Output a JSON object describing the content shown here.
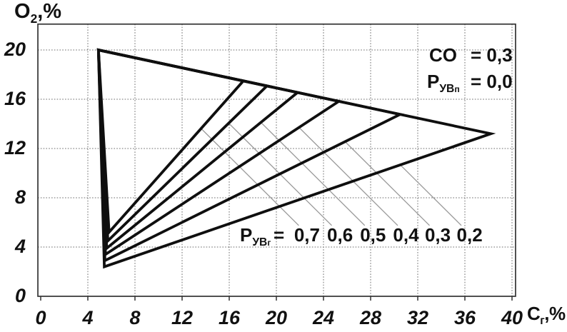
{
  "page": {
    "background": "#ffffff"
  },
  "axes": {
    "y_title": {
      "main": "O",
      "sub": "2",
      "suffix": ",%"
    },
    "x_title": {
      "main": "C",
      "sub": "г",
      "suffix": ",%"
    },
    "x_ticks": [
      "0",
      "4",
      "8",
      "12",
      "16",
      "20",
      "24",
      "28",
      "32",
      "36",
      "40"
    ],
    "y_ticks": [
      "0",
      "4",
      "8",
      "12",
      "16",
      "20"
    ]
  },
  "annotation": {
    "rows": [
      {
        "name_main": "CO",
        "name_sub": "",
        "name_subsub": "",
        "eq": "=",
        "value": "0,3"
      },
      {
        "name_main": "Р",
        "name_sub": "УВ",
        "name_subsub": "п",
        "eq": "=",
        "value": "0,0"
      }
    ]
  },
  "family_label": {
    "name_main": "Р",
    "name_sub": "УВ",
    "name_subsub": "г",
    "eq": "=",
    "values": [
      "0,7",
      "0,6",
      "0,5",
      "0,4",
      "0,3",
      "0,2"
    ]
  },
  "chart_data": {
    "type": "line",
    "title": "",
    "xlabel": "Сг,%",
    "ylabel": "О2,%",
    "xlim": [
      0,
      40.3
    ],
    "ylim": [
      0,
      22.1
    ],
    "x_ticks": [
      0,
      4,
      8,
      12,
      16,
      20,
      24,
      28,
      32,
      36,
      40
    ],
    "y_ticks": [
      0,
      4,
      8,
      12,
      16,
      20
    ],
    "grid": true,
    "legend_position": "none",
    "line_color": "#0f0f0f",
    "leader_color": "#9a9a9a",
    "grid_color": "#6b6b6b",
    "frame_color": "#333333",
    "annotation_lines": [
      "CO = 0,3",
      "РУВп = 0,0"
    ],
    "family_label": "РУВг = 0,7 0,6 0,5 0,4 0,3 0,2",
    "series": [
      {
        "name": "РУВг = 0,7",
        "apex": [
          4.9,
          20.0
        ],
        "tip": [
          17.2,
          17.49
        ],
        "bottom": [
          5.8,
          5.2
        ]
      },
      {
        "name": "РУВг = 0,6",
        "apex": [
          4.9,
          20.0
        ],
        "tip": [
          19.2,
          17.08
        ],
        "bottom": [
          5.7,
          4.5
        ]
      },
      {
        "name": "РУВг = 0,5",
        "apex": [
          4.9,
          20.0
        ],
        "tip": [
          21.8,
          16.55
        ],
        "bottom": [
          5.6,
          3.9
        ]
      },
      {
        "name": "РУВг = 0,4",
        "apex": [
          4.9,
          20.0
        ],
        "tip": [
          25.3,
          15.83
        ],
        "bottom": [
          5.5,
          3.4
        ]
      },
      {
        "name": "РУВг = 0,3",
        "apex": [
          4.9,
          20.0
        ],
        "tip": [
          30.5,
          14.77
        ],
        "bottom": [
          5.45,
          2.9
        ]
      },
      {
        "name": "РУВг = 0,2",
        "apex": [
          4.9,
          20.0
        ],
        "tip": [
          38.2,
          13.2
        ],
        "bottom": [
          5.4,
          2.4
        ]
      }
    ],
    "labels_x": [
      22.6,
      25.4,
      28.2,
      31.0,
      33.7,
      36.4
    ],
    "label_y": 5.75,
    "leader_slope": 0.95
  }
}
